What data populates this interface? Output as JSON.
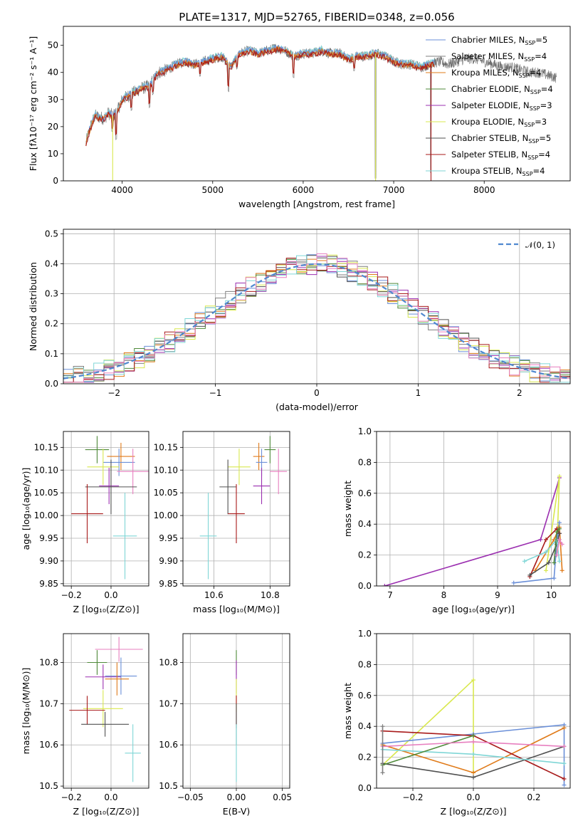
{
  "figure": {
    "title": "PLATE=1317, MJD=52765, FIBERID=0348, z=0.056"
  },
  "colors": {
    "Chabrier MILES": "#6a8fd8",
    "Salpeter MILES": "#7f7f7f",
    "Kroupa MILES": "#e07b1a",
    "Chabrier ELODIE": "#4f8a3a",
    "Salpeter ELODIE": "#9b2fb0",
    "Kroupa ELODIE": "#d9e84f",
    "Chabrier STELIB": "#505050",
    "Salpeter STELIB": "#a81a1a",
    "Kroupa STELIB": "#7fd6d6",
    "extra_pink": "#e77fbf",
    "gaussian": "#4f88cf"
  },
  "chart_data": [
    {
      "id": "spectrum",
      "type": "line",
      "title": "PLATE=1317, MJD=52765, FIBERID=0348, z=0.056",
      "xlabel": "wavelength [Angstrom, rest frame]",
      "ylabel": "Flux [fλ10⁻¹⁷ erg cm⁻² s⁻¹ A⁻¹]",
      "xlim": [
        3350,
        8950
      ],
      "ylim": [
        0,
        57
      ],
      "xticks": [
        4000,
        5000,
        6000,
        7000,
        8000
      ],
      "yticks": [
        0,
        10,
        20,
        30,
        40,
        50
      ],
      "grid": false,
      "legend_position": "top-right",
      "legend": [
        {
          "name": "Chabrier MILES",
          "sub": "SSP",
          "n": "=5"
        },
        {
          "name": "Salpeter MILES",
          "sub": "SSP",
          "n": "=4"
        },
        {
          "name": "Kroupa MILES",
          "sub": "SSP",
          "n": "=4"
        },
        {
          "name": "Chabrier ELODIE",
          "sub": "SSP",
          "n": "=4"
        },
        {
          "name": "Salpeter ELODIE",
          "sub": "SSP",
          "n": "=3"
        },
        {
          "name": "Kroupa ELODIE",
          "sub": "SSP",
          "n": "=3"
        },
        {
          "name": "Chabrier STELIB",
          "sub": "SSP",
          "n": "=5"
        },
        {
          "name": "Salpeter STELIB",
          "sub": "SSP",
          "n": "=4"
        },
        {
          "name": "Kroupa STELIB",
          "sub": "SSP",
          "n": "=4"
        }
      ],
      "continuum": [
        [
          3600,
          14
        ],
        [
          3650,
          20
        ],
        [
          3700,
          24
        ],
        [
          3800,
          23
        ],
        [
          3850,
          25
        ],
        [
          3900,
          24
        ],
        [
          3950,
          26
        ],
        [
          4000,
          30
        ],
        [
          4100,
          32
        ],
        [
          4200,
          34
        ],
        [
          4300,
          35
        ],
        [
          4400,
          40
        ],
        [
          4500,
          41
        ],
        [
          4600,
          43
        ],
        [
          4700,
          44
        ],
        [
          4800,
          43
        ],
        [
          4900,
          44
        ],
        [
          5000,
          45
        ],
        [
          5100,
          46
        ],
        [
          5200,
          42
        ],
        [
          5300,
          47
        ],
        [
          5400,
          48
        ],
        [
          5500,
          47
        ],
        [
          5600,
          48
        ],
        [
          5700,
          49
        ],
        [
          5800,
          48
        ],
        [
          5900,
          46
        ],
        [
          6000,
          47
        ],
        [
          6100,
          47
        ],
        [
          6200,
          48
        ],
        [
          6300,
          47
        ],
        [
          6400,
          47
        ],
        [
          6500,
          45
        ],
        [
          6600,
          46
        ],
        [
          6700,
          46
        ],
        [
          6800,
          47
        ],
        [
          6900,
          46
        ],
        [
          7000,
          44
        ],
        [
          7100,
          43
        ],
        [
          7200,
          43
        ],
        [
          7300,
          42
        ],
        [
          7400,
          43
        ],
        [
          7500,
          44
        ],
        [
          7600,
          43
        ],
        [
          7700,
          44
        ],
        [
          7800,
          45
        ],
        [
          7900,
          45
        ],
        [
          8000,
          44
        ],
        [
          8100,
          43
        ],
        [
          8200,
          42
        ],
        [
          8300,
          42
        ],
        [
          8400,
          41
        ],
        [
          8500,
          40
        ],
        [
          8600,
          40
        ],
        [
          8700,
          39
        ],
        [
          8800,
          38
        ]
      ],
      "dips": [
        [
          3890,
          6
        ],
        [
          3935,
          10
        ],
        [
          4102,
          6
        ],
        [
          4303,
          8
        ],
        [
          4340,
          5
        ],
        [
          4861,
          5
        ],
        [
          5175,
          10
        ],
        [
          5270,
          4
        ],
        [
          5893,
          8
        ],
        [
          6563,
          5
        ],
        [
          6800,
          46
        ],
        [
          7410,
          40
        ]
      ]
    },
    {
      "id": "residuals",
      "type": "area",
      "xlabel": "(data-model)/error",
      "ylabel": "Normed distribution",
      "xlim": [
        -2.5,
        2.5
      ],
      "ylim": [
        0,
        0.515
      ],
      "xticks": [
        -2,
        -1,
        0,
        1,
        2
      ],
      "yticks": [
        0.0,
        0.1,
        0.2,
        0.3,
        0.4,
        0.5
      ],
      "grid": true,
      "legend_position": "top-right",
      "legend": [
        {
          "name": "𝒩(0, 1)"
        }
      ],
      "bin_width": 0.1
    },
    {
      "id": "age-vs-Z",
      "type": "scatter",
      "xlabel": "Z [log₁₀(Z/Z⊙)]",
      "ylabel": "age  [log₁₀(age/yr)]",
      "xlim": [
        -0.24,
        0.19
      ],
      "ylim": [
        9.845,
        10.185
      ],
      "xticks": [
        -0.2,
        0.0
      ],
      "yticks": [
        9.85,
        9.9,
        9.95,
        10.0,
        10.05,
        10.1,
        10.15
      ],
      "grid": true,
      "points": [
        {
          "series": "Chabrier ELODIE",
          "x": -0.07,
          "y": 10.145,
          "xe": 0.06,
          "ye": 0.03
        },
        {
          "series": "Kroupa MILES",
          "x": 0.05,
          "y": 10.13,
          "xe": 0.07,
          "ye": 0.03
        },
        {
          "series": "Chabrier MILES",
          "x": 0.04,
          "y": 10.117,
          "xe": 0.08,
          "ye": 0.03
        },
        {
          "series": "Kroupa ELODIE",
          "x": -0.04,
          "y": 10.107,
          "xe": 0.08,
          "ye": 0.04
        },
        {
          "series": "extra_pink",
          "x": 0.11,
          "y": 10.097,
          "xe": 0.08,
          "ye": 0.05
        },
        {
          "series": "Salpeter ELODIE",
          "x": -0.01,
          "y": 10.065,
          "xe": 0.05,
          "ye": 0.04
        },
        {
          "series": "Chabrier STELIB",
          "x": 0.0,
          "y": 10.063,
          "xe": 0.13,
          "ye": 0.06
        },
        {
          "series": "Salpeter STELIB",
          "x": -0.12,
          "y": 10.004,
          "xe": 0.08,
          "ye": 0.065
        },
        {
          "series": "Kroupa STELIB",
          "x": 0.07,
          "y": 9.955,
          "xe": 0.06,
          "ye": 0.095
        }
      ]
    },
    {
      "id": "age-vs-mass",
      "type": "scatter",
      "xlabel": "mass [log₁₀(M/M⊙)]",
      "ylabel": "",
      "xlim": [
        10.49,
        10.87
      ],
      "ylim": [
        9.845,
        10.185
      ],
      "xticks": [
        10.6,
        10.8
      ],
      "yticks": [
        9.85,
        9.9,
        9.95,
        10.0,
        10.05,
        10.1,
        10.15
      ],
      "grid": true,
      "points": [
        {
          "series": "Chabrier ELODIE",
          "x": 10.8,
          "y": 10.145,
          "xe": 0.02,
          "ye": 0.03
        },
        {
          "series": "Kroupa MILES",
          "x": 10.76,
          "y": 10.13,
          "xe": 0.02,
          "ye": 0.03
        },
        {
          "series": "Chabrier MILES",
          "x": 10.77,
          "y": 10.117,
          "xe": 0.02,
          "ye": 0.03
        },
        {
          "series": "Kroupa ELODIE",
          "x": 10.69,
          "y": 10.107,
          "xe": 0.04,
          "ye": 0.04
        },
        {
          "series": "extra_pink",
          "x": 10.83,
          "y": 10.097,
          "xe": 0.03,
          "ye": 0.05
        },
        {
          "series": "Salpeter ELODIE",
          "x": 10.77,
          "y": 10.065,
          "xe": 0.03,
          "ye": 0.04
        },
        {
          "series": "Chabrier STELIB",
          "x": 10.65,
          "y": 10.063,
          "xe": 0.03,
          "ye": 0.06
        },
        {
          "series": "Salpeter STELIB",
          "x": 10.68,
          "y": 10.004,
          "xe": 0.03,
          "ye": 0.065
        },
        {
          "series": "Kroupa STELIB",
          "x": 10.58,
          "y": 9.955,
          "xe": 0.03,
          "ye": 0.095
        }
      ]
    },
    {
      "id": "weight-vs-age",
      "type": "line",
      "xlabel": "age  [log₁₀(age/yr)]",
      "ylabel": "mass weight",
      "xlim": [
        6.75,
        10.35
      ],
      "ylim": [
        0,
        1.0
      ],
      "xticks": [
        7,
        8,
        9,
        10
      ],
      "yticks": [
        0.0,
        0.2,
        0.4,
        0.6,
        0.8,
        1.0
      ],
      "grid": true,
      "series": [
        {
          "series": "Salpeter ELODIE",
          "points": [
            [
              6.9,
              0.0
            ],
            [
              9.8,
              0.3
            ],
            [
              10.15,
              0.7
            ]
          ]
        },
        {
          "series": "Kroupa ELODIE",
          "points": [
            [
              9.9,
              0.1
            ],
            [
              10.15,
              0.71
            ],
            [
              10.1,
              0.2
            ]
          ]
        },
        {
          "series": "Chabrier MILES",
          "points": [
            [
              9.3,
              0.02
            ],
            [
              10.05,
              0.05
            ],
            [
              10.1,
              0.28
            ],
            [
              10.15,
              0.41
            ],
            [
              10.1,
              0.3
            ]
          ]
        },
        {
          "series": "Kroupa MILES",
          "points": [
            [
              9.7,
              0.1
            ],
            [
              10.05,
              0.3
            ],
            [
              10.15,
              0.38
            ],
            [
              10.2,
              0.1
            ]
          ]
        },
        {
          "series": "Salpeter STELIB",
          "points": [
            [
              9.6,
              0.06
            ],
            [
              9.9,
              0.3
            ],
            [
              10.1,
              0.37
            ],
            [
              10.15,
              0.34
            ]
          ]
        },
        {
          "series": "Chabrier STELIB",
          "points": [
            [
              9.6,
              0.07
            ],
            [
              9.95,
              0.15
            ],
            [
              10.1,
              0.27
            ],
            [
              10.15,
              0.34
            ]
          ]
        },
        {
          "series": "Kroupa STELIB",
          "points": [
            [
              9.5,
              0.16
            ],
            [
              9.9,
              0.22
            ],
            [
              10.1,
              0.3
            ],
            [
              10.15,
              0.16
            ]
          ]
        },
        {
          "series": "Chabrier ELODIE",
          "points": [
            [
              10.05,
              0.15
            ],
            [
              10.1,
              0.35
            ],
            [
              10.15,
              0.37
            ]
          ]
        },
        {
          "series": "extra_pink",
          "points": [
            [
              10.1,
              0.2
            ],
            [
              10.15,
              0.3
            ],
            [
              10.2,
              0.27
            ]
          ]
        }
      ]
    },
    {
      "id": "mass-vs-Z",
      "type": "scatter",
      "xlabel": "Z [log₁₀(Z/Z⊙)]",
      "ylabel": "mass [log₁₀(M/M⊙)]",
      "xlim": [
        -0.24,
        0.19
      ],
      "ylim": [
        10.495,
        10.87
      ],
      "xticks": [
        -0.2,
        0.0
      ],
      "yticks": [
        10.5,
        10.6,
        10.7,
        10.8
      ],
      "grid": true,
      "points": [
        {
          "series": "extra_pink",
          "x": 0.04,
          "y": 10.832,
          "xe": 0.12,
          "ye": 0.03
        },
        {
          "series": "Chabrier ELODIE",
          "x": -0.07,
          "y": 10.8,
          "xe": 0.05,
          "ye": 0.03
        },
        {
          "series": "Chabrier MILES",
          "x": 0.05,
          "y": 10.767,
          "xe": 0.08,
          "ye": 0.045
        },
        {
          "series": "Salpeter ELODIE",
          "x": -0.04,
          "y": 10.765,
          "xe": 0.09,
          "ye": 0.03
        },
        {
          "series": "Kroupa MILES",
          "x": 0.03,
          "y": 10.76,
          "xe": 0.06,
          "ye": 0.04
        },
        {
          "series": "Kroupa ELODIE",
          "x": -0.04,
          "y": 10.688,
          "xe": 0.1,
          "ye": 0.045
        },
        {
          "series": "Salpeter STELIB",
          "x": -0.12,
          "y": 10.684,
          "xe": 0.09,
          "ye": 0.035
        },
        {
          "series": "Chabrier STELIB",
          "x": -0.03,
          "y": 10.65,
          "xe": 0.12,
          "ye": 0.03
        },
        {
          "series": "Kroupa STELIB",
          "x": 0.11,
          "y": 10.58,
          "xe": 0.04,
          "ye": 0.07
        }
      ]
    },
    {
      "id": "mass-vs-EBV",
      "type": "scatter",
      "xlabel": "E(B-V)",
      "ylabel": "",
      "xlim": [
        -0.058,
        0.058
      ],
      "ylim": [
        10.495,
        10.87
      ],
      "xticks": [
        -0.05,
        0.0,
        0.05
      ],
      "yticks": [
        10.5,
        10.6,
        10.7,
        10.8
      ],
      "grid": true,
      "points": [
        {
          "series": "Chabrier ELODIE",
          "x": 0,
          "y": 10.8,
          "xe": 0,
          "ye": 0.03
        },
        {
          "series": "Salpeter ELODIE",
          "x": 0,
          "y": 10.765,
          "xe": 0,
          "ye": 0.04
        },
        {
          "series": "Kroupa ELODIE",
          "x": 0,
          "y": 10.72,
          "xe": 0,
          "ye": 0.04
        },
        {
          "series": "Salpeter STELIB",
          "x": 0,
          "y": 10.68,
          "xe": 0,
          "ye": 0.04
        },
        {
          "series": "Chabrier STELIB",
          "x": 0,
          "y": 10.65,
          "xe": 0,
          "ye": 0.05
        },
        {
          "series": "Kroupa STELIB",
          "x": 0,
          "y": 10.58,
          "xe": 0,
          "ye": 0.07
        }
      ]
    },
    {
      "id": "weight-vs-Z",
      "type": "line",
      "xlabel": "Z [log₁₀(Z/Z⊙)]",
      "ylabel": "mass weight",
      "xlim": [
        -0.32,
        0.32
      ],
      "ylim": [
        0,
        1.0
      ],
      "xticks": [
        -0.2,
        0.0,
        0.2
      ],
      "yticks": [
        0.0,
        0.2,
        0.4,
        0.6,
        0.8,
        1.0
      ],
      "grid": true,
      "series": [
        {
          "series": "Kroupa ELODIE",
          "points": [
            [
              -0.3,
              0.15
            ],
            [
              0.0,
              0.7
            ],
            [
              0.0,
              0.1
            ]
          ]
        },
        {
          "series": "Chabrier MILES",
          "points": [
            [
              -0.3,
              0.29
            ],
            [
              0.0,
              0.35
            ],
            [
              0.3,
              0.41
            ],
            [
              0.3,
              0.02
            ]
          ]
        },
        {
          "series": "Kroupa MILES",
          "points": [
            [
              -0.3,
              0.28
            ],
            [
              0.0,
              0.1
            ],
            [
              0.3,
              0.39
            ]
          ]
        },
        {
          "series": "Salpeter STELIB",
          "points": [
            [
              -0.3,
              0.37
            ],
            [
              0.0,
              0.34
            ],
            [
              0.3,
              0.06
            ]
          ]
        },
        {
          "series": "Chabrier STELIB",
          "points": [
            [
              -0.3,
              0.16
            ],
            [
              0.0,
              0.07
            ],
            [
              0.3,
              0.27
            ]
          ]
        },
        {
          "series": "Kroupa STELIB",
          "points": [
            [
              -0.3,
              0.25
            ],
            [
              0.0,
              0.22
            ],
            [
              0.3,
              0.16
            ]
          ]
        },
        {
          "series": "Chabrier ELODIE",
          "points": [
            [
              -0.3,
              0.15
            ],
            [
              0.0,
              0.34
            ]
          ]
        },
        {
          "series": "extra_pink",
          "points": [
            [
              -0.3,
              0.27
            ],
            [
              0.0,
              0.3
            ],
            [
              0.3,
              0.27
            ]
          ]
        },
        {
          "series": "Salpeter MILES",
          "points": [
            [
              -0.3,
              0.4
            ],
            [
              -0.3,
              0.1
            ]
          ]
        }
      ]
    }
  ]
}
